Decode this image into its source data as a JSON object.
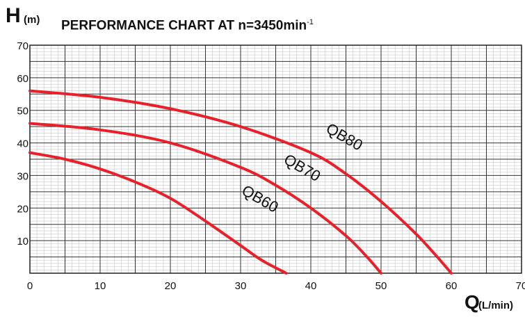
{
  "header": {
    "title": "PERFORMANCE CHART AT n=3450min",
    "title_superscript": "-1"
  },
  "axes": {
    "y_main": "H",
    "y_unit": "(m)",
    "x_main": "Q",
    "x_unit": "(L/min)"
  },
  "chart_data": {
    "type": "line",
    "title": "PERFORMANCE CHART AT n=3450min-1",
    "xlabel": "Q(L/min)",
    "ylabel": "H(m)",
    "xlim": [
      0,
      70
    ],
    "ylim": [
      0,
      70
    ],
    "x_ticks": [
      "0",
      "10",
      "20",
      "30",
      "40",
      "50",
      "60",
      "70"
    ],
    "y_ticks": [
      "10",
      "20",
      "30",
      "40",
      "50",
      "60",
      "70"
    ],
    "grid": true,
    "line_color": "#e8202a",
    "series": [
      {
        "name": "QB60",
        "x": [
          0,
          5,
          10,
          15,
          20,
          25,
          30,
          33,
          36.5
        ],
        "y": [
          37,
          35,
          32,
          28,
          23,
          16,
          8.5,
          4,
          0
        ]
      },
      {
        "name": "QB70",
        "x": [
          0,
          10,
          20,
          30,
          35,
          40,
          45,
          48,
          50
        ],
        "y": [
          46,
          44,
          40,
          32.5,
          27,
          20,
          11.5,
          5,
          0
        ]
      },
      {
        "name": "QB80",
        "x": [
          0,
          10,
          20,
          30,
          40,
          45,
          50,
          55,
          58,
          60
        ],
        "y": [
          56,
          54,
          50.5,
          45,
          37,
          30.5,
          22,
          12,
          5,
          0
        ]
      }
    ],
    "series_labels": [
      {
        "name": "QB60",
        "x": 30,
        "y": 24.5,
        "angle": 30
      },
      {
        "name": "QB70",
        "x": 36,
        "y": 34,
        "angle": 30
      },
      {
        "name": "QB80",
        "x": 42,
        "y": 43.5,
        "angle": 30
      }
    ]
  }
}
